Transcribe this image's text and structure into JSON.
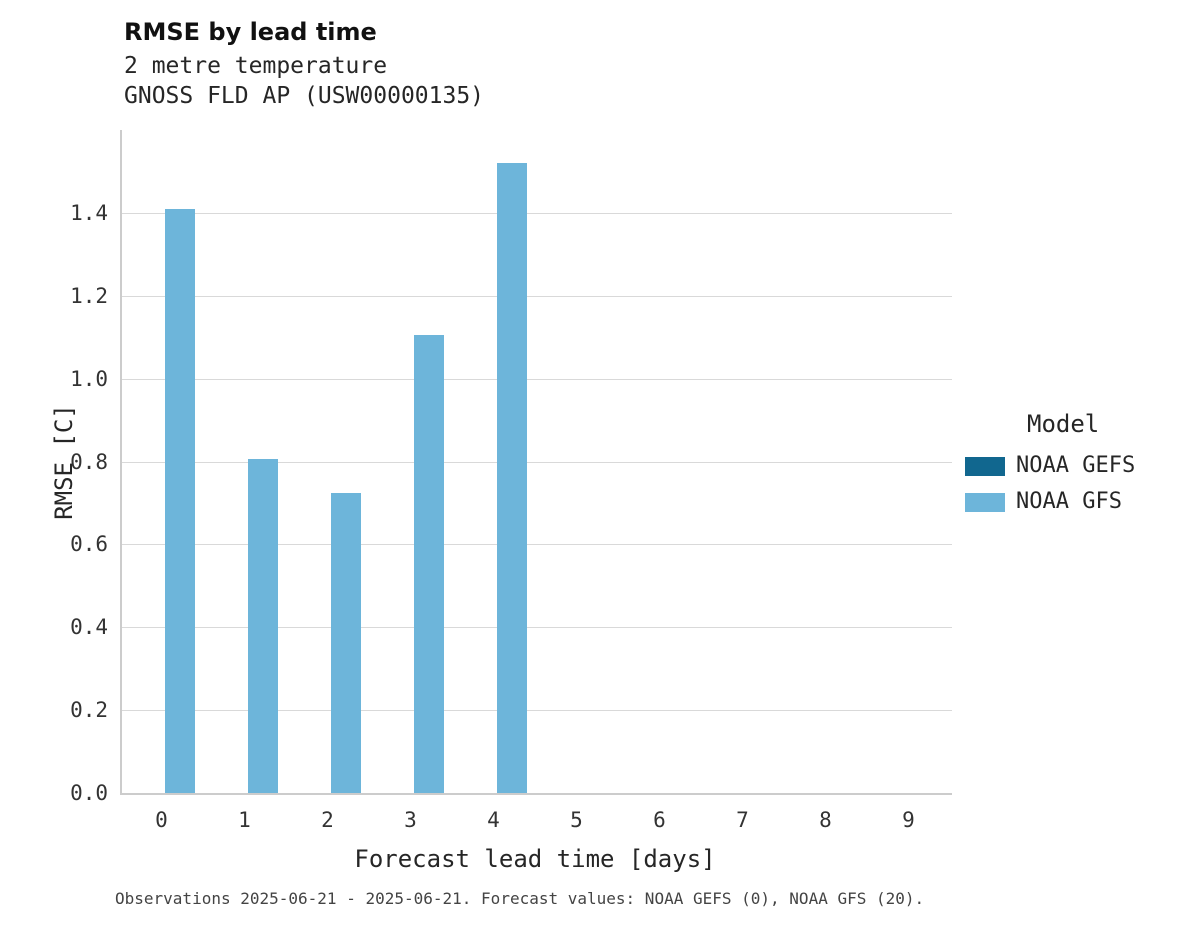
{
  "header": {
    "title": "RMSE by lead time",
    "subtitle1": "2 metre temperature",
    "subtitle2": "GNOSS FLD AP (USW00000135)"
  },
  "legend": {
    "title": "Model",
    "items": [
      {
        "label": "NOAA GEFS",
        "color": "#11678f"
      },
      {
        "label": "NOAA GFS",
        "color": "#6db5da"
      }
    ]
  },
  "footer": {
    "caption": "Observations 2025-06-21 - 2025-06-21. Forecast values: NOAA GEFS (0), NOAA GFS (20)."
  },
  "chart_data": {
    "type": "bar",
    "title": "RMSE by lead time",
    "xlabel": "Forecast lead time [days]",
    "ylabel": "RMSE [C]",
    "categories": [
      "0",
      "1",
      "2",
      "3",
      "4",
      "5",
      "6",
      "7",
      "8",
      "9"
    ],
    "series": [
      {
        "name": "NOAA GEFS",
        "color": "#11678f",
        "values": [
          null,
          null,
          null,
          null,
          null,
          null,
          null,
          null,
          null,
          null
        ]
      },
      {
        "name": "NOAA GFS",
        "color": "#6db5da",
        "values": [
          1.41,
          0.805,
          0.725,
          1.105,
          1.52,
          null,
          null,
          null,
          null,
          null
        ]
      }
    ],
    "ylim": [
      0,
      1.6
    ],
    "yticks": [
      0.0,
      0.2,
      0.4,
      0.6,
      0.8,
      1.0,
      1.2,
      1.4
    ],
    "grid": true,
    "legend_position": "right"
  }
}
